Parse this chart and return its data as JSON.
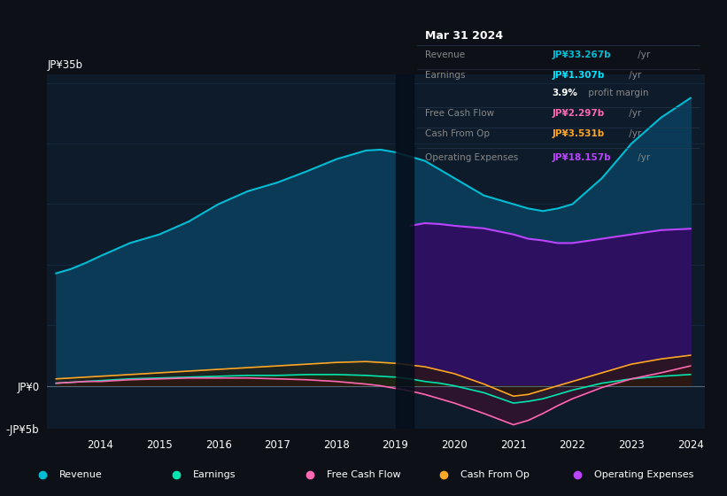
{
  "background_color": "#0d1117",
  "plot_bg_color": "#0d1b2a",
  "grid_color": "#1e3050",
  "years": [
    2013.25,
    2013.5,
    2013.75,
    2014.0,
    2014.5,
    2015.0,
    2015.5,
    2016.0,
    2016.5,
    2017.0,
    2017.5,
    2018.0,
    2018.5,
    2018.75,
    2019.0,
    2019.25,
    2019.5,
    2019.75,
    2020.0,
    2020.5,
    2021.0,
    2021.25,
    2021.5,
    2021.75,
    2022.0,
    2022.5,
    2023.0,
    2023.5,
    2024.0
  ],
  "revenue": [
    13.0,
    13.5,
    14.2,
    15.0,
    16.5,
    17.5,
    19.0,
    21.0,
    22.5,
    23.5,
    24.8,
    26.2,
    27.2,
    27.3,
    27.0,
    26.5,
    26.0,
    25.0,
    24.0,
    22.0,
    21.0,
    20.5,
    20.2,
    20.5,
    21.0,
    24.0,
    28.0,
    31.0,
    33.267
  ],
  "earnings": [
    0.3,
    0.4,
    0.5,
    0.6,
    0.8,
    0.9,
    1.0,
    1.1,
    1.2,
    1.2,
    1.3,
    1.3,
    1.2,
    1.1,
    1.0,
    0.8,
    0.5,
    0.3,
    0.0,
    -0.8,
    -2.0,
    -1.8,
    -1.5,
    -1.0,
    -0.5,
    0.3,
    0.8,
    1.1,
    1.307
  ],
  "free_cash_flow": [
    0.3,
    0.4,
    0.5,
    0.5,
    0.7,
    0.8,
    0.9,
    0.9,
    0.9,
    0.8,
    0.7,
    0.5,
    0.2,
    0.0,
    -0.3,
    -0.6,
    -1.0,
    -1.5,
    -2.0,
    -3.2,
    -4.5,
    -4.0,
    -3.2,
    -2.3,
    -1.5,
    -0.2,
    0.8,
    1.5,
    2.297
  ],
  "cash_from_op": [
    0.8,
    0.9,
    1.0,
    1.1,
    1.3,
    1.5,
    1.7,
    1.9,
    2.1,
    2.3,
    2.5,
    2.7,
    2.8,
    2.7,
    2.6,
    2.4,
    2.2,
    1.8,
    1.4,
    0.2,
    -1.2,
    -1.0,
    -0.5,
    0.0,
    0.5,
    1.5,
    2.5,
    3.1,
    3.531
  ],
  "op_expenses": [
    0.0,
    0.0,
    0.0,
    0.0,
    0.0,
    0.0,
    0.0,
    0.0,
    0.0,
    0.0,
    0.0,
    0.0,
    0.0,
    0.0,
    0.0,
    18.5,
    18.8,
    18.7,
    18.5,
    18.2,
    17.5,
    17.0,
    16.8,
    16.5,
    16.5,
    17.0,
    17.5,
    18.0,
    18.157
  ],
  "ylim": [
    -5,
    36
  ],
  "xtick_years": [
    2014,
    2015,
    2016,
    2017,
    2018,
    2019,
    2020,
    2021,
    2022,
    2023,
    2024
  ],
  "revenue_line_color": "#00bcd4",
  "revenue_fill_color": "#0a3a55",
  "earnings_line_color": "#00e5b0",
  "earnings_fill_color": "#0d3a28",
  "fcf_line_color": "#ff69b4",
  "fcf_fill_color": "#3a1030",
  "cashop_line_color": "#ffa726",
  "cashop_fill_color": "#2a1800",
  "opex_line_color": "#bb44ff",
  "opex_fill_color": "#2d1060",
  "zero_line_color": "#556677",
  "grid_h_color": "#1a2d45",
  "divider_shade_color": "#050d1a",
  "legend_items": [
    {
      "label": "Revenue",
      "color": "#00bcd4"
    },
    {
      "label": "Earnings",
      "color": "#00e5b0"
    },
    {
      "label": "Free Cash Flow",
      "color": "#ff69b4"
    },
    {
      "label": "Cash From Op",
      "color": "#ffa726"
    },
    {
      "label": "Operating Expenses",
      "color": "#bb44ff"
    }
  ],
  "infobox": {
    "date": "Mar 31 2024",
    "date_color": "#ffffff",
    "bg_color": "#060c14",
    "border_color": "#2a3a55",
    "rows": [
      {
        "label": "Revenue",
        "value": "JP¥33.267b",
        "suffix": " /yr",
        "value_color": "#00bcd4",
        "label_color": "#888888"
      },
      {
        "label": "Earnings",
        "value": "JP¥1.307b",
        "suffix": " /yr",
        "value_color": "#00e5ff",
        "label_color": "#888888"
      },
      {
        "label": "",
        "value": "3.9%",
        "suffix": " profit margin",
        "value_color": "#ffffff",
        "label_color": "#888888"
      },
      {
        "label": "Free Cash Flow",
        "value": "JP¥2.297b",
        "suffix": " /yr",
        "value_color": "#ff69b4",
        "label_color": "#888888"
      },
      {
        "label": "Cash From Op",
        "value": "JP¥3.531b",
        "suffix": " /yr",
        "value_color": "#ffa726",
        "label_color": "#888888"
      },
      {
        "label": "Operating Expenses",
        "value": "JP¥18.157b",
        "suffix": " /yr",
        "value_color": "#bb44ff",
        "label_color": "#888888"
      }
    ]
  }
}
